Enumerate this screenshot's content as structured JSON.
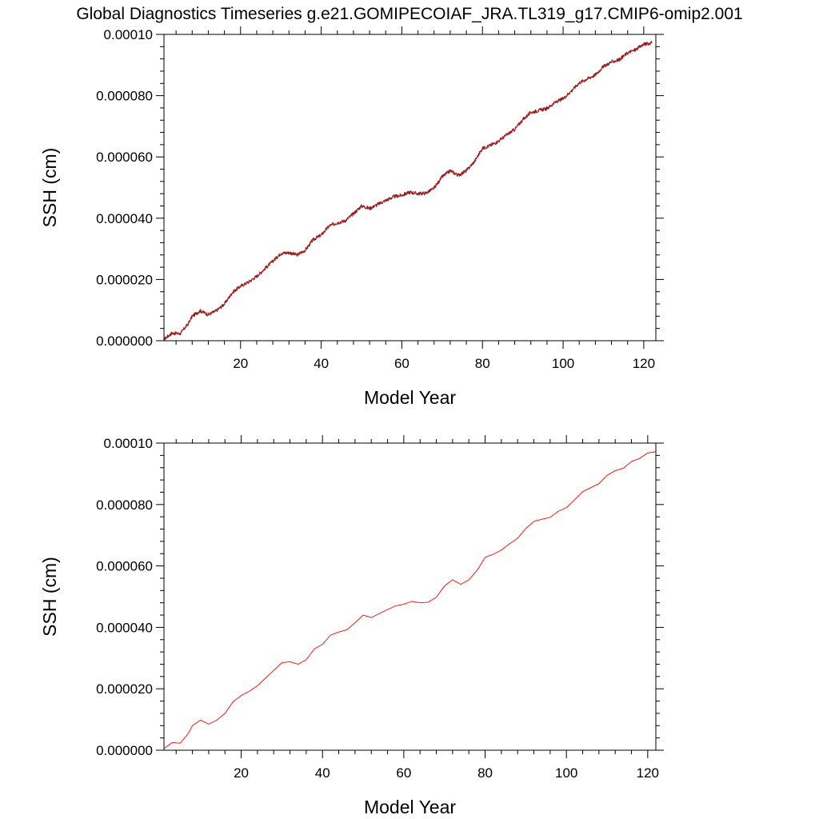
{
  "figure": {
    "title": "Global Diagnostics Timeseries g.e21.GOMIPECOIAF_JRA.TL319_g17.CMIP6-omip2.001"
  },
  "colors": {
    "raw_line": "#7a1f1f",
    "smooth_line": "#ff0000",
    "axis": "#000000"
  },
  "chart_data": [
    {
      "type": "line",
      "xlabel": "Model Year",
      "ylabel": "SSH (cm)",
      "xlim": [
        1,
        123
      ],
      "ylim": [
        0,
        0.0001
      ],
      "x_ticks": [
        20,
        40,
        60,
        80,
        100,
        120
      ],
      "y_ticks": [
        0,
        2e-05,
        4e-05,
        6e-05,
        8e-05,
        0.0001
      ],
      "y_tick_labels": [
        "0.000000",
        "0.000020",
        "0.000040",
        "0.000060",
        "0.000080",
        "0.00010"
      ],
      "x_tick_labels": [
        "20",
        "40",
        "60",
        "80",
        "100",
        "120"
      ],
      "grid": false,
      "series": [
        {
          "style": "monthly",
          "x": [
            1,
            3,
            5,
            7,
            8,
            10,
            12,
            14,
            16,
            18,
            20,
            22,
            24,
            26,
            28,
            30,
            32,
            34,
            36,
            38,
            40,
            42,
            44,
            46,
            48,
            50,
            52,
            54,
            56,
            58,
            60,
            62,
            64,
            66,
            68,
            70,
            72,
            74,
            76,
            78,
            80,
            82,
            84,
            86,
            88,
            90,
            92,
            94,
            96,
            98,
            100,
            102,
            104,
            106,
            108,
            110,
            112,
            114,
            116,
            118,
            120,
            122
          ],
          "y": [
            5e-07,
            2.5e-06,
            2.3e-06,
            5.5e-06,
            8e-06,
            9.8e-06,
            8.5e-06,
            9.8e-06,
            1.2e-05,
            1.58e-05,
            1.78e-05,
            1.92e-05,
            2.1e-05,
            2.35e-05,
            2.6e-05,
            2.85e-05,
            2.88e-05,
            2.8e-05,
            2.95e-05,
            3.3e-05,
            3.45e-05,
            3.75e-05,
            3.85e-05,
            3.92e-05,
            4.15e-05,
            4.4e-05,
            4.32e-05,
            4.45e-05,
            4.58e-05,
            4.7e-05,
            4.75e-05,
            4.85e-05,
            4.8e-05,
            4.82e-05,
            4.98e-05,
            5.35e-05,
            5.55e-05,
            5.4e-05,
            5.55e-05,
            5.85e-05,
            6.28e-05,
            6.38e-05,
            6.52e-05,
            6.72e-05,
            6.9e-05,
            7.22e-05,
            7.45e-05,
            7.52e-05,
            7.58e-05,
            7.78e-05,
            7.9e-05,
            8.15e-05,
            8.42e-05,
            8.55e-05,
            8.68e-05,
            8.95e-05,
            9.1e-05,
            9.18e-05,
            9.4e-05,
            9.5e-05,
            9.68e-05,
            9.72e-05
          ]
        }
      ]
    },
    {
      "type": "line",
      "xlabel": "Model Year",
      "ylabel": "SSH (cm)",
      "xlim": [
        1,
        122
      ],
      "ylim": [
        0,
        0.0001
      ],
      "x_ticks": [
        20,
        40,
        60,
        80,
        100,
        120
      ],
      "y_ticks": [
        0,
        2e-05,
        4e-05,
        6e-05,
        8e-05,
        0.0001
      ],
      "y_tick_labels": [
        "0.000000",
        "0.000020",
        "0.000040",
        "0.000060",
        "0.000080",
        "0.00010"
      ],
      "x_tick_labels": [
        "20",
        "40",
        "60",
        "80",
        "100",
        "120"
      ],
      "grid": false,
      "series": [
        {
          "style": "annual",
          "x": [
            1,
            3,
            5,
            7,
            8,
            10,
            12,
            14,
            16,
            18,
            20,
            22,
            24,
            26,
            28,
            30,
            32,
            34,
            36,
            38,
            40,
            42,
            44,
            46,
            48,
            50,
            52,
            54,
            56,
            58,
            60,
            62,
            64,
            66,
            68,
            70,
            72,
            74,
            76,
            78,
            80,
            82,
            84,
            86,
            88,
            90,
            92,
            94,
            96,
            98,
            100,
            102,
            104,
            106,
            108,
            110,
            112,
            114,
            116,
            118,
            120,
            122
          ],
          "y": [
            5e-07,
            2.5e-06,
            2.3e-06,
            5.5e-06,
            8e-06,
            9.8e-06,
            8.5e-06,
            9.8e-06,
            1.2e-05,
            1.58e-05,
            1.78e-05,
            1.92e-05,
            2.1e-05,
            2.35e-05,
            2.6e-05,
            2.85e-05,
            2.88e-05,
            2.8e-05,
            2.95e-05,
            3.3e-05,
            3.45e-05,
            3.75e-05,
            3.85e-05,
            3.92e-05,
            4.15e-05,
            4.4e-05,
            4.32e-05,
            4.45e-05,
            4.58e-05,
            4.7e-05,
            4.75e-05,
            4.85e-05,
            4.8e-05,
            4.82e-05,
            4.98e-05,
            5.35e-05,
            5.55e-05,
            5.4e-05,
            5.55e-05,
            5.85e-05,
            6.28e-05,
            6.38e-05,
            6.52e-05,
            6.72e-05,
            6.9e-05,
            7.22e-05,
            7.45e-05,
            7.52e-05,
            7.58e-05,
            7.78e-05,
            7.9e-05,
            8.15e-05,
            8.42e-05,
            8.55e-05,
            8.68e-05,
            8.95e-05,
            9.1e-05,
            9.18e-05,
            9.4e-05,
            9.5e-05,
            9.68e-05,
            9.72e-05
          ]
        }
      ]
    }
  ]
}
